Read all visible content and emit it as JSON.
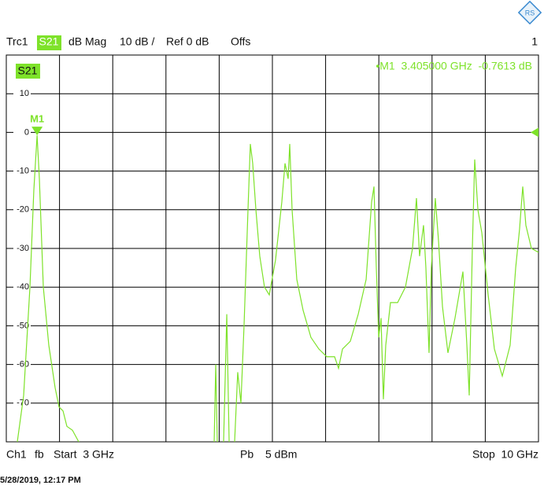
{
  "header": {
    "trace": "Trc1",
    "parameter": "S21",
    "format": "dB Mag",
    "scale": "10 dB /",
    "reference": "Ref 0 dB",
    "offset": "Offs",
    "window": "1"
  },
  "footer": {
    "channel": "Ch1",
    "sweep": "fb",
    "start": "Start  3 GHz",
    "power_label": "Pb",
    "power": "5 dBm",
    "stop": "Stop  10 GHz",
    "timestamp": "5/28/2019, 12:17 PM"
  },
  "chart_data": {
    "type": "line",
    "trace_label": "S21",
    "color": "#7ee22a",
    "xlim": [
      3,
      10
    ],
    "ylim": [
      -80,
      20
    ],
    "yticks": [
      10,
      0,
      -10,
      -20,
      -30,
      -40,
      -50,
      -60,
      -70
    ],
    "grid": true,
    "ref_level": 0,
    "x": [
      3.145,
      3.228,
      3.311,
      3.362,
      3.405,
      3.435,
      3.487,
      3.559,
      3.642,
      3.694,
      3.746,
      3.797,
      3.87,
      3.953,
      null,
      5.734,
      5.755,
      5.775,
      null,
      5.858,
      5.9,
      5.931,
      null,
      6.003,
      6.044,
      6.086,
      6.127,
      6.179,
      6.21,
      6.241,
      6.283,
      6.334,
      6.396,
      6.459,
      6.541,
      6.624,
      6.666,
      6.707,
      6.728,
      6.759,
      6.821,
      6.904,
      7.007,
      7.111,
      7.215,
      7.318,
      7.37,
      7.422,
      7.525,
      7.629,
      7.733,
      7.805,
      7.836,
      7.867,
      7.898,
      7.929,
      7.96,
      7.991,
      8.053,
      8.147,
      8.25,
      8.343,
      8.395,
      8.436,
      8.488,
      8.519,
      8.56,
      8.591,
      8.643,
      8.685,
      8.737,
      8.809,
      8.902,
      9.006,
      9.058,
      9.089,
      9.13,
      9.161,
      9.203,
      9.255,
      9.338,
      9.42,
      9.524,
      9.627,
      9.7,
      9.751,
      9.793,
      9.834,
      9.907,
      10.0
    ],
    "series": [
      {
        "name": "S21",
        "values": [
          -80,
          -68,
          -40,
          -15,
          -0.7613,
          -12,
          -40,
          -55,
          -66,
          -71,
          -72,
          -76,
          -77,
          -80,
          null,
          -80,
          -60,
          -80,
          null,
          -80,
          -47,
          -80,
          null,
          -80,
          -62,
          -70,
          -50,
          -20,
          -3,
          -8,
          -20,
          -32,
          -40,
          -42,
          -33,
          -18,
          -8,
          -12,
          -3,
          -20,
          -38,
          -46,
          -53,
          -56,
          -58,
          -58,
          -61,
          -56,
          -54,
          -47,
          -38,
          -18,
          -14,
          -35,
          -53,
          -48,
          -69,
          -55,
          -44,
          -44,
          -40,
          -30,
          -17,
          -32,
          -24,
          -35,
          -57,
          -35,
          -17,
          -28,
          -45,
          -57,
          -48,
          -36,
          -55,
          -68,
          -30,
          -7,
          -20,
          -26,
          -42,
          -56,
          -63,
          -55,
          -35,
          -25,
          -14,
          -24,
          -30,
          -31
        ]
      }
    ],
    "markers": [
      {
        "name": "M1",
        "x": 3.405,
        "y": -0.7613,
        "readout": "•M1  3.405000 GHz  -0.7613 dB"
      }
    ]
  }
}
